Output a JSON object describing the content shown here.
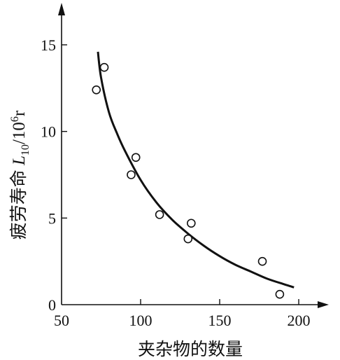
{
  "chart_data": {
    "type": "scatter",
    "title": "",
    "xlabel": "夹杂物的数量",
    "ylabel_prefix": "疲劳寿命 ",
    "ylabel_var": "L",
    "ylabel_sub": "10",
    "ylabel_mid": "/10",
    "ylabel_sup": "6",
    "ylabel_unit": "r",
    "xlim": [
      50,
      230
    ],
    "ylim": [
      0,
      17
    ],
    "x_ticks": [
      50,
      100,
      150,
      200
    ],
    "y_ticks": [
      0,
      5,
      10,
      15
    ],
    "x_tick_labels": [
      "50",
      "100",
      "150",
      "200"
    ],
    "y_tick_labels": [
      "0",
      "5",
      "10",
      "15"
    ],
    "series": [
      {
        "type": "scatter",
        "marker": "open-circle",
        "x": [
          72,
          77,
          94,
          97,
          112,
          130,
          132,
          177,
          188
        ],
        "y": [
          12.4,
          13.7,
          7.5,
          8.5,
          5.2,
          3.8,
          4.7,
          2.5,
          0.6
        ]
      },
      {
        "type": "line",
        "x": [
          73,
          75,
          80,
          85,
          90,
          100,
          110,
          120,
          130,
          140,
          150,
          160,
          170,
          180,
          190,
          197
        ],
        "y": [
          14.6,
          13.1,
          11.1,
          9.9,
          8.9,
          7.2,
          5.9,
          4.9,
          4.1,
          3.4,
          2.8,
          2.3,
          1.9,
          1.5,
          1.2,
          1.0
        ]
      }
    ],
    "grid": false,
    "legend": "none",
    "colors": {
      "ink": "#111111",
      "background": "#ffffff"
    }
  }
}
